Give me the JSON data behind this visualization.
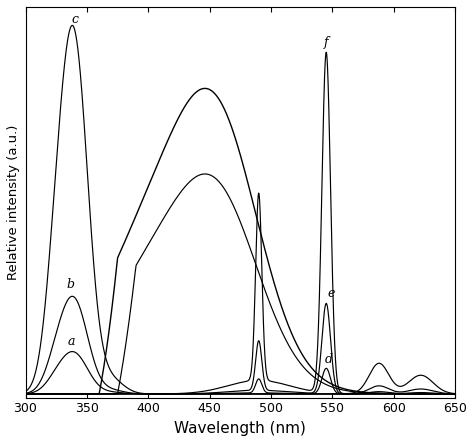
{
  "xlabel": "Wavelength (nm)",
  "ylabel": "Relative intensity (a.u.)",
  "xlim": [
    300,
    650
  ],
  "ylim": [
    -0.01,
    1.05
  ],
  "background_color": "#ffffff",
  "excitation_peak": 340,
  "excitation_sigma": 11,
  "excitation_shoulder_mu": 325,
  "excitation_shoulder_sigma": 9,
  "excitation_shoulder_amp": 0.28,
  "excitation_scales": [
    0.115,
    0.265,
    1.0
  ],
  "emission_scales": [
    0.075,
    0.265,
    1.0
  ],
  "broad_curve1_mu": 420,
  "broad_curve1_sigma": 50,
  "broad_curve1_amp": 0.58,
  "broad_curve2_mu": 460,
  "broad_curve2_sigma": 32,
  "broad_curve2_amp": 0.43,
  "broad_curve1_start": 360,
  "broad_curve2_start": 375,
  "em_490_mu": 490,
  "em_490_sigma": 2.5,
  "em_490_amp": 0.55,
  "em_545_mu": 545,
  "em_545_sigma": 3.5,
  "em_545_amp": 1.0,
  "em_585_mu": 588,
  "em_585_sigma": 8,
  "em_585_amp": 0.09,
  "em_620_mu": 622,
  "em_620_sigma": 10,
  "em_620_amp": 0.055,
  "label_fontsize": 9,
  "lw": 0.85
}
